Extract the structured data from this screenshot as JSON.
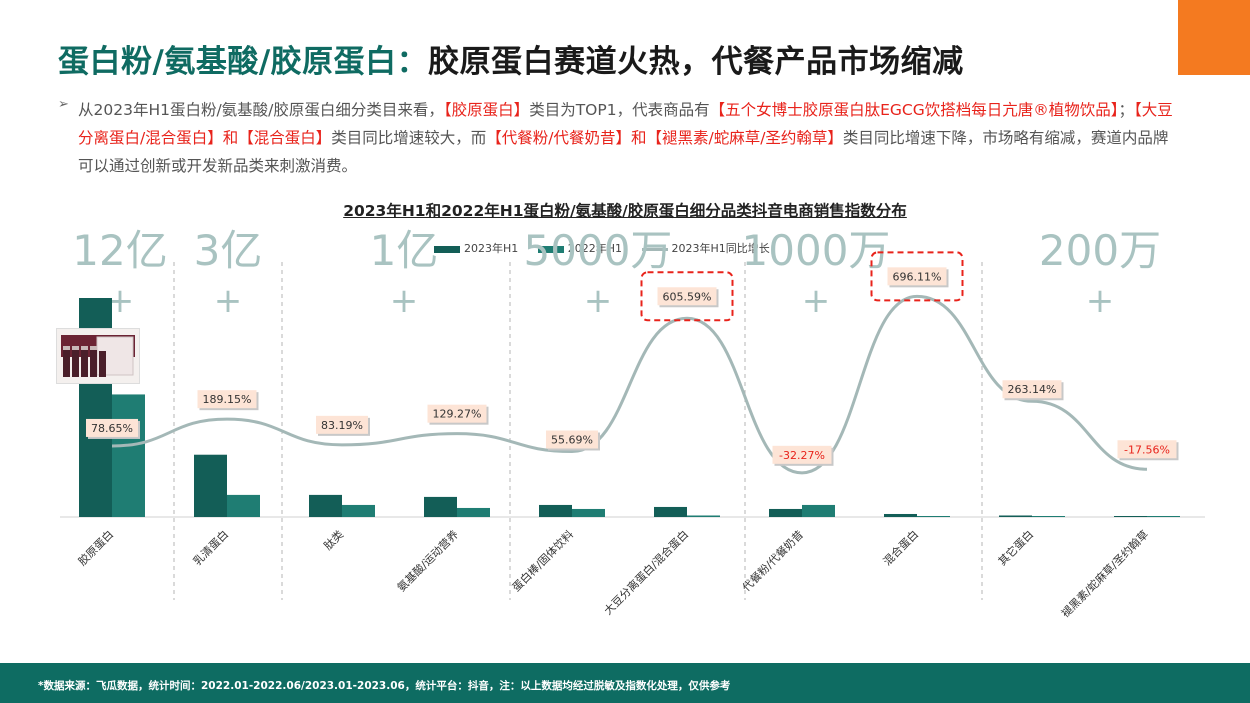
{
  "title": {
    "highlight": "蛋白粉/氨基酸/胶原蛋白：",
    "rest": "胶原蛋白赛道火热，代餐产品市场缩减"
  },
  "bullet_symbol": "➢",
  "description": [
    {
      "text": "从2023年H1蛋白粉/氨基酸/胶原蛋白细分类目来看，",
      "red": false
    },
    {
      "text": "【胶原蛋白】",
      "red": true
    },
    {
      "text": "类目为TOP1，代表商品有",
      "red": false
    },
    {
      "text": "【五个女博士胶原蛋白肽EGCG饮搭档每日亢唐®植物饮品】",
      "red": true
    },
    {
      "text": "；",
      "red": false
    },
    {
      "text": "【大豆分离蛋白/混合蛋白】和【混合蛋白】",
      "red": true
    },
    {
      "text": "类目同比增速较大，而",
      "red": false
    },
    {
      "text": "【代餐粉/代餐奶昔】和【褪黑素/蛇麻草/圣约翰草】",
      "red": true
    },
    {
      "text": "类目同比增速下降，市场略有缩减，赛道内品牌可以通过创新或开发新品类来刺激消费。",
      "red": false
    }
  ],
  "colors": {
    "bar2023": "#135e57",
    "bar2022": "#1f7d73",
    "line": "#a4b8b7",
    "accent": "#f47a20",
    "red": "#e8231b",
    "footer": "#0e6c62"
  },
  "chart_data": {
    "type": "bar",
    "title": "2023年H1和2022年H1蛋白粉/氨基酸/胶原蛋白细分品类抖音电商销售指数分布",
    "categories": [
      "胶原蛋白",
      "乳清蛋白",
      "肽类",
      "氨基酸/运动营养",
      "蛋白棒/固体饮料",
      "大豆分离蛋白/混合蛋白",
      "代餐粉/代餐奶昔",
      "混合蛋白",
      "其它蛋白",
      "褪黑素/蛇麻草/圣约翰草"
    ],
    "series": [
      {
        "name": "2023年H1",
        "type": "bar",
        "values": [
          218,
          62,
          22,
          20,
          12,
          10,
          8,
          3,
          1.5,
          0.4
        ]
      },
      {
        "name": "2022年H1",
        "type": "bar",
        "values": [
          122,
          22,
          12,
          9,
          8,
          1.5,
          12,
          0.4,
          0.4,
          0.5
        ]
      },
      {
        "name": "2023年H1同比增长",
        "type": "line",
        "values": [
          78.65,
          189.15,
          83.19,
          129.27,
          55.69,
          605.59,
          -32.27,
          696.11,
          263.14,
          -17.56
        ]
      }
    ],
    "line_labels": [
      "78.65%",
      "189.15%",
      "83.19%",
      "129.27%",
      "55.69%",
      "605.59%",
      "-32.27%",
      "696.11%",
      "263.14%",
      "-17.56%"
    ],
    "highlighted": [
      "605.59%",
      "696.11%"
    ],
    "group_labels": [
      {
        "text": "12亿",
        "plus": "+"
      },
      {
        "text": "3亿",
        "plus": "+"
      },
      {
        "text": "1亿",
        "plus": "+"
      },
      {
        "text": "5000万",
        "plus": "+"
      },
      {
        "text": "1000万",
        "plus": "+"
      },
      {
        "text": "200万",
        "plus": "+"
      }
    ]
  },
  "footer": "*数据来源：飞瓜数据，统计时间：2022.01-2022.06/2023.01-2023.06，统计平台：抖音，注：以上数据均经过脱敏及指数化处理，仅供参考"
}
